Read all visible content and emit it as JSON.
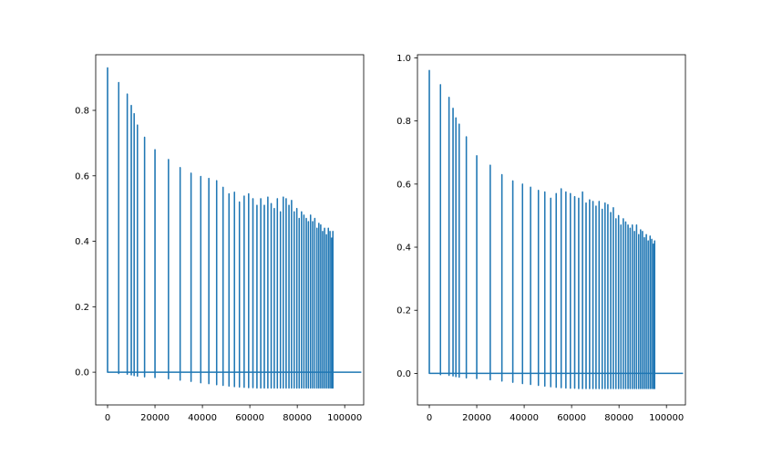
{
  "figure": {
    "background": "#ffffff",
    "line_color": "#1f77b4"
  },
  "chart_data": [
    {
      "type": "line",
      "title": "",
      "xlabel": "",
      "ylabel": "",
      "xlim": [
        -5000,
        108000
      ],
      "ylim": [
        -0.1,
        0.97
      ],
      "grid": false,
      "xticks": [
        0,
        20000,
        40000,
        60000,
        80000,
        100000
      ],
      "xtick_labels": [
        "0",
        "20000",
        "40000",
        "60000",
        "80000",
        "100000"
      ],
      "yticks": [
        0.0,
        0.2,
        0.4,
        0.6,
        0.8
      ],
      "ytick_labels": [
        "0.0",
        "0.2",
        "0.4",
        "0.6",
        "0.8"
      ],
      "baseline_y": 0.0,
      "end_x": 107000,
      "last_spike_x": 95000,
      "spikes": {
        "x": [
          0,
          4700,
          8300,
          10000,
          11200,
          12600,
          15600,
          20000,
          25700,
          30600,
          35200,
          39300,
          42700,
          46000,
          48700,
          51200,
          53500,
          55600,
          57600,
          59500,
          61300,
          63000,
          64600,
          66100,
          67600,
          69000,
          70300,
          71600,
          72900,
          74100,
          75300,
          76500,
          77600,
          78700,
          79800,
          80800,
          81800,
          82800,
          83800,
          84700,
          85600,
          86500,
          87400,
          88300,
          89100,
          89900,
          90700,
          91500,
          92300,
          93100,
          93800,
          94500,
          95000
        ],
        "peak": [
          0.93,
          0.885,
          0.85,
          0.815,
          0.79,
          0.755,
          0.718,
          0.68,
          0.65,
          0.625,
          0.608,
          0.598,
          0.592,
          0.585,
          0.565,
          0.545,
          0.55,
          0.52,
          0.538,
          0.545,
          0.53,
          0.51,
          0.53,
          0.51,
          0.535,
          0.515,
          0.5,
          0.53,
          0.49,
          0.535,
          0.53,
          0.51,
          0.525,
          0.49,
          0.5,
          0.47,
          0.49,
          0.48,
          0.47,
          0.46,
          0.48,
          0.46,
          0.47,
          0.44,
          0.455,
          0.45,
          0.43,
          0.44,
          0.42,
          0.44,
          0.43,
          0.41,
          0.43
        ],
        "trough": [
          0.0,
          -0.004,
          -0.006,
          -0.008,
          -0.01,
          -0.012,
          -0.014,
          -0.016,
          -0.02,
          -0.024,
          -0.028,
          -0.032,
          -0.035,
          -0.038,
          -0.04,
          -0.042,
          -0.044,
          -0.045,
          -0.046,
          -0.047,
          -0.047,
          -0.048,
          -0.048,
          -0.048,
          -0.048,
          -0.048,
          -0.048,
          -0.048,
          -0.048,
          -0.048,
          -0.048,
          -0.048,
          -0.048,
          -0.048,
          -0.048,
          -0.048,
          -0.048,
          -0.048,
          -0.048,
          -0.048,
          -0.048,
          -0.048,
          -0.048,
          -0.048,
          -0.048,
          -0.048,
          -0.048,
          -0.048,
          -0.048,
          -0.048,
          -0.048,
          -0.048,
          -0.048
        ]
      }
    },
    {
      "type": "line",
      "title": "",
      "xlabel": "",
      "ylabel": "",
      "xlim": [
        -5000,
        108000
      ],
      "ylim": [
        -0.1,
        1.01
      ],
      "grid": false,
      "xticks": [
        0,
        20000,
        40000,
        60000,
        80000,
        100000
      ],
      "xtick_labels": [
        "0",
        "20000",
        "40000",
        "60000",
        "80000",
        "100000"
      ],
      "yticks": [
        0.0,
        0.2,
        0.4,
        0.6,
        0.8,
        1.0
      ],
      "ytick_labels": [
        "0.0",
        "0.2",
        "0.4",
        "0.6",
        "0.8",
        "1.0"
      ],
      "baseline_y": 0.0,
      "end_x": 107000,
      "last_spike_x": 95000,
      "spikes": {
        "x": [
          0,
          4700,
          8300,
          10000,
          11200,
          12600,
          15600,
          20000,
          25700,
          30600,
          35200,
          39300,
          42700,
          46000,
          48700,
          51200,
          53500,
          55600,
          57600,
          59500,
          61300,
          63000,
          64600,
          66100,
          67600,
          69000,
          70300,
          71600,
          72900,
          74100,
          75300,
          76500,
          77600,
          78700,
          79800,
          80800,
          81800,
          82800,
          83800,
          84700,
          85600,
          86500,
          87400,
          88300,
          89100,
          89900,
          90700,
          91500,
          92300,
          93100,
          93800,
          94500,
          95000
        ],
        "peak": [
          0.96,
          0.915,
          0.875,
          0.84,
          0.81,
          0.79,
          0.75,
          0.69,
          0.66,
          0.63,
          0.61,
          0.6,
          0.59,
          0.58,
          0.575,
          0.555,
          0.57,
          0.585,
          0.575,
          0.57,
          0.56,
          0.555,
          0.575,
          0.54,
          0.55,
          0.545,
          0.53,
          0.545,
          0.52,
          0.54,
          0.535,
          0.51,
          0.525,
          0.49,
          0.5,
          0.47,
          0.49,
          0.48,
          0.47,
          0.46,
          0.47,
          0.45,
          0.47,
          0.44,
          0.455,
          0.45,
          0.43,
          0.44,
          0.42,
          0.435,
          0.425,
          0.41,
          0.42
        ],
        "trough": [
          0.0,
          -0.004,
          -0.006,
          -0.008,
          -0.01,
          -0.012,
          -0.014,
          -0.016,
          -0.02,
          -0.024,
          -0.028,
          -0.032,
          -0.035,
          -0.038,
          -0.04,
          -0.042,
          -0.044,
          -0.045,
          -0.046,
          -0.047,
          -0.047,
          -0.048,
          -0.048,
          -0.048,
          -0.048,
          -0.048,
          -0.048,
          -0.048,
          -0.048,
          -0.048,
          -0.048,
          -0.048,
          -0.048,
          -0.048,
          -0.048,
          -0.048,
          -0.048,
          -0.048,
          -0.048,
          -0.048,
          -0.048,
          -0.048,
          -0.048,
          -0.048,
          -0.048,
          -0.048,
          -0.048,
          -0.048,
          -0.048,
          -0.048,
          -0.048,
          -0.048,
          -0.048
        ]
      }
    }
  ]
}
